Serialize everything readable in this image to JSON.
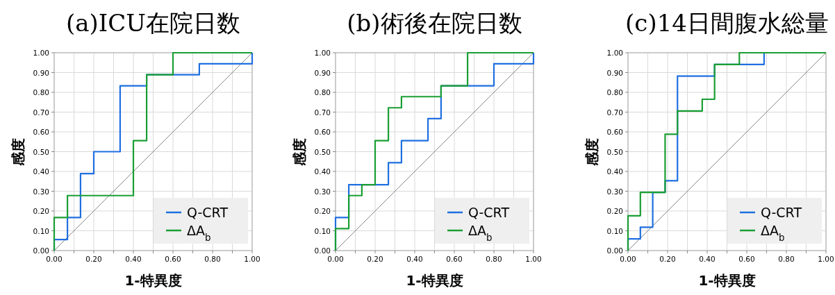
{
  "chart_data": [
    {
      "type": "line",
      "title": "(a)ICU在院日数",
      "xlabel": "1-特異度",
      "ylabel": "感度",
      "xlim": [
        0,
        1
      ],
      "ylim": [
        0,
        1
      ],
      "xticks": [
        {
          "value": 0,
          "label": "0.00"
        },
        {
          "value": 0.1,
          "label": null
        },
        {
          "value": 0.2,
          "label": "0.20"
        },
        {
          "value": 0.3,
          "label": null
        },
        {
          "value": 0.4,
          "label": "0.40"
        },
        {
          "value": 0.5,
          "label": null
        },
        {
          "value": 0.6,
          "label": "0.60"
        },
        {
          "value": 0.7,
          "label": null
        },
        {
          "value": 0.8,
          "label": "0.80"
        },
        {
          "value": 0.9,
          "label": null
        },
        {
          "value": 1,
          "label": "1.00"
        }
      ],
      "yticks": [
        {
          "value": 0,
          "label": "0.00"
        },
        {
          "value": 0.1,
          "label": "0.10"
        },
        {
          "value": 0.2,
          "label": "0.20"
        },
        {
          "value": 0.3,
          "label": "0.30"
        },
        {
          "value": 0.4,
          "label": "0.40"
        },
        {
          "value": 0.5,
          "label": "0.50"
        },
        {
          "value": 0.6,
          "label": "0.60"
        },
        {
          "value": 0.7,
          "label": "0.70"
        },
        {
          "value": 0.8,
          "label": "0.80"
        },
        {
          "value": 0.9,
          "label": "0.90"
        },
        {
          "value": 1,
          "label": "1.00"
        }
      ],
      "grid": true,
      "legend": "bottom right",
      "series": [
        {
          "color": "#888888",
          "x": [
            0,
            1
          ],
          "values": [
            0,
            1
          ]
        },
        {
          "name": "Q-CRT",
          "color": "#1f6fe0",
          "x": [
            0,
            0,
            0.067,
            0.067,
            0.133,
            0.133,
            0.2,
            0.2,
            0.333,
            0.333,
            0.467,
            0.467,
            0.733,
            0.733,
            1,
            1
          ],
          "values": [
            0,
            0.056,
            0.056,
            0.167,
            0.167,
            0.389,
            0.389,
            0.5,
            0.5,
            0.833,
            0.833,
            0.889,
            0.889,
            0.944,
            0.944,
            1
          ]
        },
        {
          "name": "ΔA$_{b}$",
          "color": "#1a9e33",
          "x": [
            0,
            0,
            0.067,
            0.067,
            0.4,
            0.4,
            0.467,
            0.467,
            0.6,
            0.6,
            1
          ],
          "values": [
            0,
            0.167,
            0.167,
            0.278,
            0.278,
            0.556,
            0.556,
            0.889,
            0.889,
            1,
            1
          ]
        }
      ]
    },
    {
      "type": "line",
      "title": "(b)術後在院日数",
      "xlabel": "1-特異度",
      "ylabel": "感度",
      "xlim": [
        0,
        1
      ],
      "ylim": [
        0,
        1
      ],
      "xticks": [
        {
          "value": 0,
          "label": "0.00"
        },
        {
          "value": 0.1,
          "label": null
        },
        {
          "value": 0.2,
          "label": "0.20"
        },
        {
          "value": 0.3,
          "label": null
        },
        {
          "value": 0.4,
          "label": "0.40"
        },
        {
          "value": 0.5,
          "label": null
        },
        {
          "value": 0.6,
          "label": "0.60"
        },
        {
          "value": 0.7,
          "label": null
        },
        {
          "value": 0.8,
          "label": "0.80"
        },
        {
          "value": 0.9,
          "label": null
        },
        {
          "value": 1,
          "label": "1.00"
        }
      ],
      "yticks": [
        {
          "value": 0,
          "label": "0.00"
        },
        {
          "value": 0.1,
          "label": "0.10"
        },
        {
          "value": 0.2,
          "label": "0.20"
        },
        {
          "value": 0.3,
          "label": "0.30"
        },
        {
          "value": 0.4,
          "label": "0.40"
        },
        {
          "value": 0.5,
          "label": "0.50"
        },
        {
          "value": 0.6,
          "label": "0.60"
        },
        {
          "value": 0.7,
          "label": "0.70"
        },
        {
          "value": 0.8,
          "label": "0.80"
        },
        {
          "value": 0.9,
          "label": "0.90"
        },
        {
          "value": 1,
          "label": "1.00"
        }
      ],
      "grid": true,
      "legend": "bottom right",
      "series": [
        {
          "color": "#888888",
          "x": [
            0,
            1
          ],
          "values": [
            0,
            1
          ]
        },
        {
          "name": "Q-CRT",
          "color": "#1f6fe0",
          "x": [
            0,
            0,
            0.067,
            0.067,
            0.267,
            0.267,
            0.333,
            0.333,
            0.467,
            0.467,
            0.533,
            0.533,
            0.8,
            0.8,
            1,
            1
          ],
          "values": [
            0,
            0.167,
            0.167,
            0.333,
            0.333,
            0.444,
            0.444,
            0.556,
            0.556,
            0.667,
            0.667,
            0.833,
            0.833,
            0.944,
            0.944,
            1
          ]
        },
        {
          "name": "ΔA$_{b}$",
          "color": "#1a9e33",
          "x": [
            0,
            0,
            0.067,
            0.067,
            0.133,
            0.133,
            0.2,
            0.2,
            0.267,
            0.267,
            0.333,
            0.333,
            0.533,
            0.533,
            0.667,
            0.667,
            1
          ],
          "values": [
            0,
            0.111,
            0.111,
            0.278,
            0.278,
            0.333,
            0.333,
            0.556,
            0.556,
            0.722,
            0.722,
            0.778,
            0.778,
            0.833,
            0.833,
            1,
            1
          ]
        }
      ]
    },
    {
      "type": "line",
      "title": "(c)14日間腹水総量",
      "xlabel": "1-特異度",
      "ylabel": "感度",
      "xlim": [
        0,
        1
      ],
      "ylim": [
        0,
        1
      ],
      "xticks": [
        {
          "value": 0,
          "label": "0.00"
        },
        {
          "value": 0.1,
          "label": null
        },
        {
          "value": 0.2,
          "label": "0.20"
        },
        {
          "value": 0.3,
          "label": null
        },
        {
          "value": 0.4,
          "label": "0.40"
        },
        {
          "value": 0.5,
          "label": null
        },
        {
          "value": 0.6,
          "label": "0.60"
        },
        {
          "value": 0.7,
          "label": null
        },
        {
          "value": 0.8,
          "label": "0.80"
        },
        {
          "value": 0.9,
          "label": null
        },
        {
          "value": 1,
          "label": "1.00"
        }
      ],
      "yticks": [
        {
          "value": 0,
          "label": "0.00"
        },
        {
          "value": 0.1,
          "label": "0.10"
        },
        {
          "value": 0.2,
          "label": "0.20"
        },
        {
          "value": 0.3,
          "label": "0.30"
        },
        {
          "value": 0.4,
          "label": "0.40"
        },
        {
          "value": 0.5,
          "label": "0.50"
        },
        {
          "value": 0.6,
          "label": "0.60"
        },
        {
          "value": 0.7,
          "label": "0.70"
        },
        {
          "value": 0.8,
          "label": "0.80"
        },
        {
          "value": 0.9,
          "label": "0.90"
        },
        {
          "value": 1,
          "label": "1.00"
        }
      ],
      "grid": true,
      "legend": "bottom right",
      "series": [
        {
          "color": "#888888",
          "x": [
            0,
            1
          ],
          "values": [
            0,
            1
          ]
        },
        {
          "name": "Q-CRT",
          "color": "#1f6fe0",
          "x": [
            0,
            0,
            0.0625,
            0.0625,
            0.125,
            0.125,
            0.1875,
            0.1875,
            0.25,
            0.25,
            0.4375,
            0.4375,
            0.6875,
            0.6875,
            1
          ],
          "values": [
            0,
            0.059,
            0.059,
            0.118,
            0.118,
            0.294,
            0.294,
            0.353,
            0.353,
            0.882,
            0.882,
            0.941,
            0.941,
            1,
            1
          ]
        },
        {
          "name": "ΔA$_{b}$",
          "color": "#1a9e33",
          "x": [
            0,
            0,
            0.0625,
            0.0625,
            0.1875,
            0.1875,
            0.25,
            0.25,
            0.375,
            0.375,
            0.4375,
            0.4375,
            0.5625,
            0.5625,
            1
          ],
          "values": [
            0,
            0.176,
            0.176,
            0.294,
            0.294,
            0.588,
            0.588,
            0.706,
            0.706,
            0.765,
            0.765,
            0.941,
            0.941,
            1,
            1
          ]
        }
      ]
    }
  ]
}
